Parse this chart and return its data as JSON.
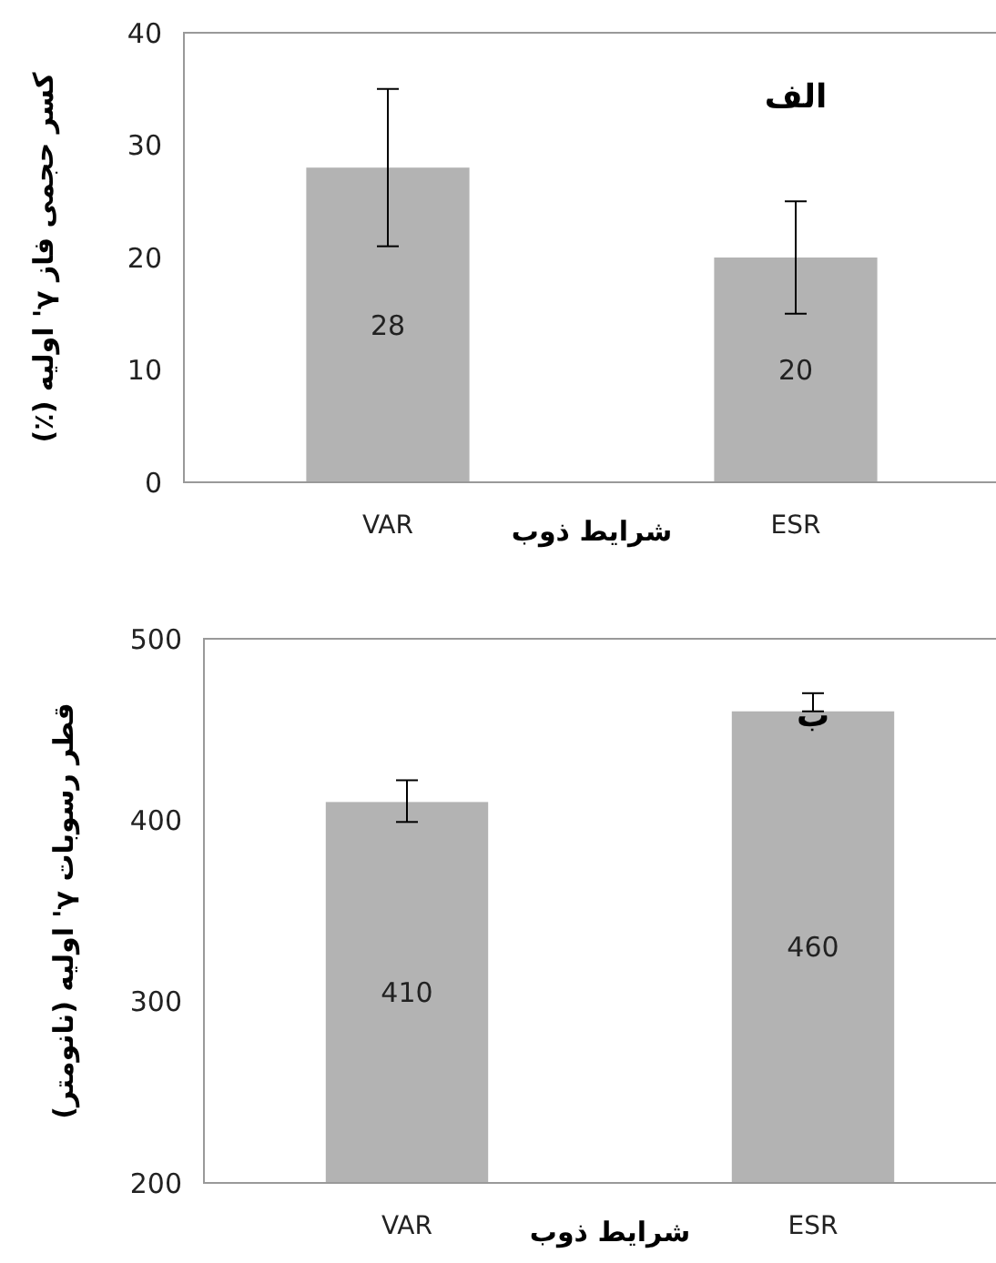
{
  "chart_data": [
    {
      "type": "bar",
      "ylabel": "کسر حجمی فاز γ' اولیه (٪)",
      "xlabel": "شرایط ذوب",
      "annotations": [
        "الف"
      ],
      "categories": [
        "VAR",
        "ESR"
      ],
      "values": [
        28,
        20
      ],
      "errors": [
        [
          21,
          35
        ],
        [
          15,
          25
        ]
      ],
      "color": "#b3b3b3",
      "ylim": [
        0,
        40
      ],
      "yticks": [
        0,
        10,
        20,
        30,
        40
      ],
      "data_labels": true
    },
    {
      "type": "bar",
      "ylabel": "قطر رسوبات γ' اولیه (نانومتر)",
      "xlabel": "شرایط ذوب",
      "annotations": [
        "ب"
      ],
      "categories": [
        "VAR",
        "ESR"
      ],
      "values": [
        410,
        460
      ],
      "errors": [
        [
          399,
          422
        ],
        [
          460,
          470
        ]
      ],
      "color": "#b3b3b3",
      "ylim": [
        200,
        500
      ],
      "yticks": [
        200,
        300,
        400,
        500
      ],
      "data_labels": true
    }
  ]
}
